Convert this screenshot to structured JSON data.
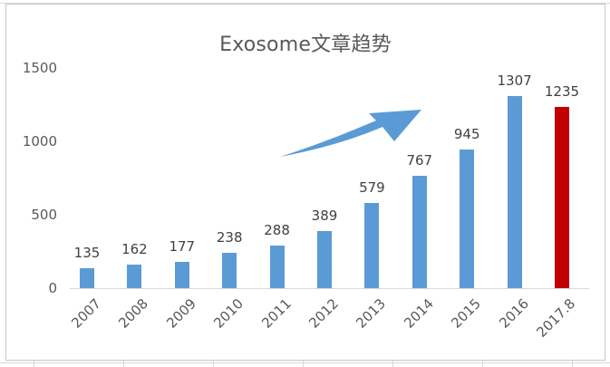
{
  "chart_data": {
    "type": "bar",
    "title": "Exosome文章趋势",
    "categories": [
      "2007",
      "2008",
      "2009",
      "2010",
      "2011",
      "2012",
      "2013",
      "2014",
      "2015",
      "2016",
      "2017.8"
    ],
    "values": [
      135,
      162,
      177,
      238,
      288,
      389,
      579,
      767,
      945,
      1307,
      1235
    ],
    "value_labels": [
      "135",
      "162",
      "177",
      "238",
      "288",
      "389",
      "579",
      "767",
      "945",
      "1307",
      "1235"
    ],
    "bar_colors": [
      "#5b9bd5",
      "#5b9bd5",
      "#5b9bd5",
      "#5b9bd5",
      "#5b9bd5",
      "#5b9bd5",
      "#5b9bd5",
      "#5b9bd5",
      "#5b9bd5",
      "#5b9bd5",
      "#c00000"
    ],
    "xlabel": "",
    "ylabel": "",
    "ylim": [
      0,
      1500
    ],
    "yticks": [
      "0",
      "500",
      "1000",
      "1500"
    ],
    "grid": false,
    "legend": null,
    "annotations": [
      {
        "type": "arrow",
        "description": "upward trend arrow",
        "color": "#5b9bd5"
      }
    ]
  },
  "colors": {
    "bar_primary": "#5b9bd5",
    "bar_highlight": "#c00000",
    "arrow": "#5b9bd5",
    "text": "#595959",
    "axis": "#d9d9d9"
  }
}
